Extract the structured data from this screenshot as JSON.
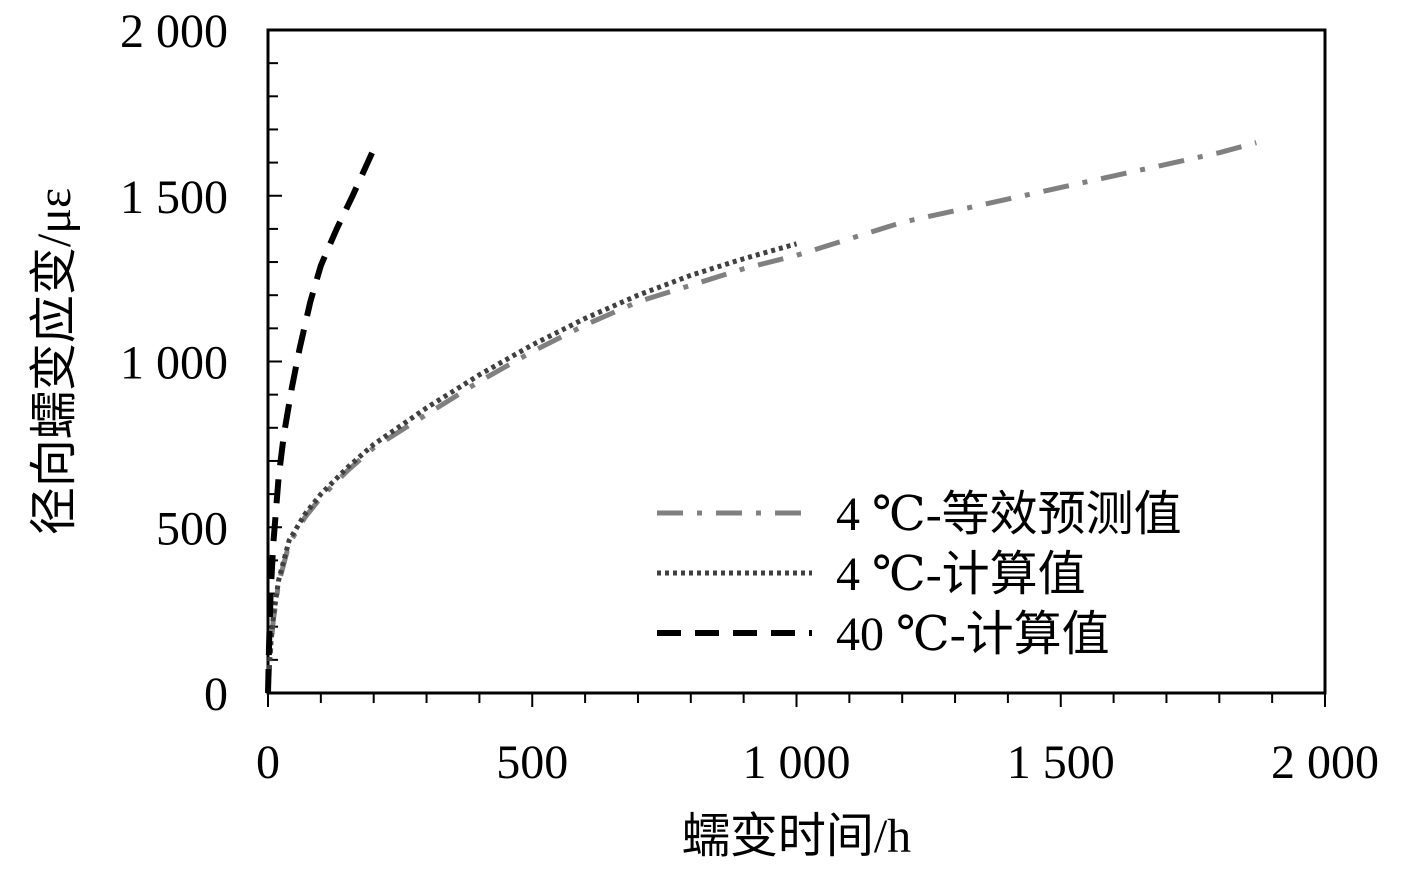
{
  "chart_data": {
    "type": "line",
    "title": "",
    "xlabel": "蠕变时间/h",
    "ylabel": "径向蠕变应变/με",
    "xlim": [
      0,
      2000
    ],
    "ylim": [
      0,
      2000
    ],
    "x_ticks": [
      0,
      500,
      1000,
      1500,
      2000
    ],
    "x_tick_labels": [
      "0",
      "500",
      "1 000",
      "1 500",
      "2 000"
    ],
    "y_ticks": [
      0,
      500,
      1000,
      1500,
      2000
    ],
    "y_tick_labels": [
      "0",
      "500",
      "1 000",
      "1 500",
      "2 000"
    ],
    "x_minor_step": 100,
    "y_minor_step": 100,
    "grid": false,
    "legend_position": "bottom-right",
    "series": [
      {
        "name": "4 ℃-等效预测值",
        "style": "dashdot",
        "color": "#808080",
        "x": [
          0,
          5,
          10,
          20,
          40,
          70,
          100,
          150,
          200,
          300,
          400,
          500,
          600,
          700,
          800,
          900,
          1000,
          1200,
          1400,
          1600,
          1800,
          1870
        ],
        "y": [
          0,
          130,
          220,
          330,
          450,
          530,
          590,
          670,
          740,
          840,
          940,
          1030,
          1110,
          1180,
          1230,
          1280,
          1320,
          1420,
          1490,
          1560,
          1630,
          1660
        ]
      },
      {
        "name": "4 ℃-计算值",
        "style": "dotted",
        "color": "#404040",
        "x": [
          0,
          5,
          10,
          20,
          40,
          70,
          100,
          150,
          200,
          300,
          400,
          500,
          600,
          700,
          800,
          900,
          1000
        ],
        "y": [
          0,
          140,
          230,
          340,
          460,
          540,
          600,
          680,
          750,
          860,
          960,
          1050,
          1130,
          1200,
          1260,
          1310,
          1355
        ]
      },
      {
        "name": "40 ℃-计算值",
        "style": "dashed",
        "color": "#000000",
        "x": [
          0,
          2,
          5,
          10,
          20,
          30,
          45,
          60,
          80,
          100,
          130,
          160,
          200
        ],
        "y": [
          0,
          150,
          300,
          450,
          650,
          780,
          920,
          1040,
          1180,
          1290,
          1400,
          1500,
          1640
        ]
      }
    ]
  }
}
